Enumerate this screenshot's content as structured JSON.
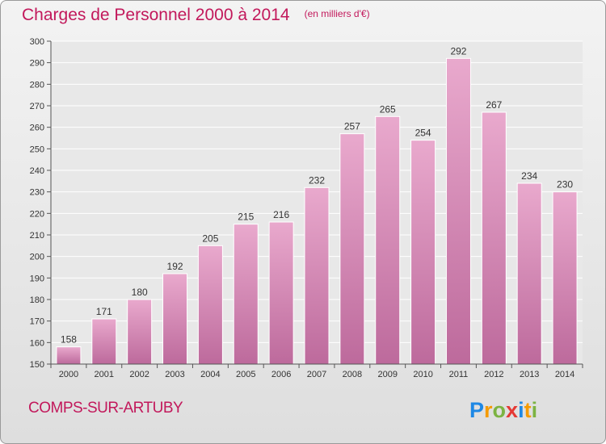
{
  "header": {
    "title": "Charges de Personnel 2000 à 2014",
    "subtitle": "(en milliers d'€)"
  },
  "footer": {
    "commune": "COMPS-SUR-ARTUBY",
    "brand": "Proxiti"
  },
  "colors": {
    "accent": "#c2185b",
    "bar_light": "#e9a9cd",
    "bar_dark": "#bd6a9c"
  },
  "chart_data": {
    "type": "bar",
    "categories": [
      "2000",
      "2001",
      "2002",
      "2003",
      "2004",
      "2005",
      "2006",
      "2007",
      "2008",
      "2009",
      "2010",
      "2011",
      "2012",
      "2013",
      "2014"
    ],
    "values": [
      158,
      171,
      180,
      192,
      205,
      215,
      216,
      232,
      257,
      265,
      254,
      292,
      267,
      234,
      230
    ],
    "ylim": [
      150,
      300
    ],
    "yticks": [
      150,
      160,
      170,
      180,
      190,
      200,
      210,
      220,
      230,
      240,
      250,
      260,
      270,
      280,
      290,
      300
    ],
    "grid": true,
    "legend": "none"
  }
}
